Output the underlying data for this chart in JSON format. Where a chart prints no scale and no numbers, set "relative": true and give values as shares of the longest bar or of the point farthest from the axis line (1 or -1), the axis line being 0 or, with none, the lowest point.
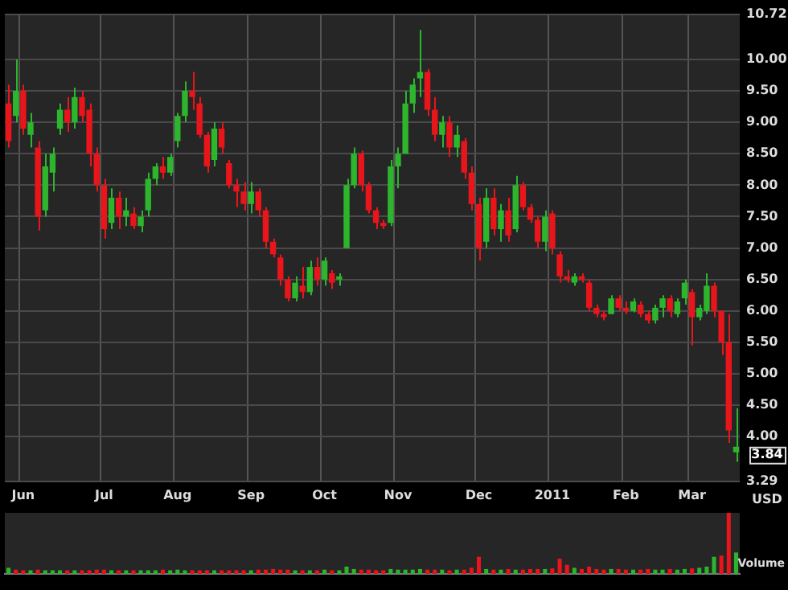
{
  "chart_data": [
    {
      "type": "candlestick",
      "ylabel": "USD",
      "grid": true,
      "categories": [
        null,
        null,
        "Jun",
        null,
        null,
        null,
        null,
        null,
        null,
        null,
        null,
        null,
        null,
        "Jul",
        null,
        null,
        null,
        null,
        null,
        null,
        null,
        null,
        null,
        "Aug",
        null,
        null,
        null,
        null,
        null,
        null,
        null,
        null,
        null,
        "Sep",
        null,
        null,
        null,
        null,
        null,
        null,
        null,
        null,
        null,
        "Oct",
        null,
        null,
        null,
        null,
        null,
        null,
        null,
        null,
        null,
        "Nov",
        null,
        null,
        null,
        null,
        null,
        null,
        null,
        null,
        null,
        null,
        "Dec",
        null,
        null,
        null,
        null,
        null,
        null,
        null,
        null,
        null,
        "2011",
        null,
        null,
        null,
        null,
        null,
        null,
        null,
        null,
        null,
        "Feb",
        null,
        null,
        null,
        null,
        null,
        null,
        null,
        null,
        "Mar",
        null,
        null,
        null,
        null,
        null,
        null
      ],
      "ohlc": [
        [
          9.3,
          9.6,
          8.6,
          8.7
        ],
        [
          9.1,
          10.0,
          9.0,
          9.5
        ],
        [
          9.5,
          9.6,
          8.8,
          8.9
        ],
        [
          8.8,
          9.15,
          8.6,
          9.0
        ],
        [
          8.6,
          8.7,
          7.28,
          7.5
        ],
        [
          7.6,
          8.5,
          7.5,
          8.3
        ],
        [
          8.2,
          8.6,
          7.9,
          8.5
        ],
        [
          8.9,
          9.3,
          8.8,
          9.2
        ],
        [
          9.2,
          9.4,
          8.85,
          9.0
        ],
        [
          9.0,
          9.55,
          8.9,
          9.4
        ],
        [
          9.4,
          9.5,
          9.0,
          9.1
        ],
        [
          9.2,
          9.3,
          8.3,
          8.5
        ],
        [
          8.5,
          8.6,
          7.9,
          8.0
        ],
        [
          8.0,
          8.1,
          7.15,
          7.3
        ],
        [
          7.4,
          7.95,
          7.3,
          7.8
        ],
        [
          7.8,
          7.9,
          7.3,
          7.5
        ],
        [
          7.5,
          7.8,
          7.35,
          7.6
        ],
        [
          7.55,
          7.65,
          7.3,
          7.35
        ],
        [
          7.35,
          7.6,
          7.25,
          7.5
        ],
        [
          7.6,
          8.2,
          7.5,
          8.1
        ],
        [
          8.1,
          8.35,
          8.0,
          8.3
        ],
        [
          8.3,
          8.45,
          8.1,
          8.2
        ],
        [
          8.2,
          8.5,
          8.15,
          8.45
        ],
        [
          8.7,
          9.15,
          8.6,
          9.1
        ],
        [
          9.1,
          9.65,
          9.0,
          9.5
        ],
        [
          9.5,
          9.8,
          9.2,
          9.4
        ],
        [
          9.3,
          9.4,
          8.75,
          8.8
        ],
        [
          8.8,
          8.85,
          8.2,
          8.3
        ],
        [
          8.4,
          9.0,
          8.3,
          8.9
        ],
        [
          8.9,
          9.0,
          8.5,
          8.6
        ],
        [
          8.35,
          8.4,
          7.95,
          8.0
        ],
        [
          8.0,
          8.1,
          7.65,
          7.9
        ],
        [
          7.9,
          8.05,
          7.6,
          7.7
        ],
        [
          7.7,
          8.05,
          7.55,
          7.9
        ],
        [
          7.9,
          7.95,
          7.5,
          7.6
        ],
        [
          7.6,
          7.65,
          7.0,
          7.1
        ],
        [
          7.1,
          7.15,
          6.85,
          6.9
        ],
        [
          6.85,
          6.9,
          6.4,
          6.5
        ],
        [
          6.5,
          6.55,
          6.15,
          6.2
        ],
        [
          6.2,
          6.55,
          6.15,
          6.45
        ],
        [
          6.4,
          6.7,
          6.2,
          6.3
        ],
        [
          6.3,
          6.8,
          6.25,
          6.7
        ],
        [
          6.7,
          6.85,
          6.4,
          6.5
        ],
        [
          6.5,
          6.85,
          6.4,
          6.8
        ],
        [
          6.6,
          6.65,
          6.35,
          6.45
        ],
        [
          6.5,
          6.6,
          6.4,
          6.55
        ],
        [
          7.0,
          8.1,
          7.0,
          8.0
        ],
        [
          8.0,
          8.6,
          7.95,
          8.5
        ],
        [
          8.5,
          8.55,
          7.9,
          8.0
        ],
        [
          8.0,
          8.05,
          7.55,
          7.6
        ],
        [
          7.6,
          7.65,
          7.3,
          7.4
        ],
        [
          7.4,
          7.45,
          7.3,
          7.35
        ],
        [
          7.4,
          8.4,
          7.35,
          8.3
        ],
        [
          8.3,
          8.6,
          7.95,
          8.5
        ],
        [
          8.5,
          9.5,
          8.5,
          9.3
        ],
        [
          9.3,
          9.7,
          9.15,
          9.6
        ],
        [
          9.7,
          10.47,
          9.4,
          9.8
        ],
        [
          9.8,
          9.85,
          9.1,
          9.2
        ],
        [
          9.2,
          9.4,
          8.7,
          8.8
        ],
        [
          8.8,
          9.1,
          8.6,
          9.0
        ],
        [
          9.0,
          9.1,
          8.45,
          8.6
        ],
        [
          8.6,
          8.95,
          8.45,
          8.8
        ],
        [
          8.7,
          8.75,
          8.1,
          8.2
        ],
        [
          8.2,
          8.3,
          7.6,
          7.7
        ],
        [
          7.7,
          7.8,
          6.8,
          7.0
        ],
        [
          7.1,
          7.95,
          7.0,
          7.8
        ],
        [
          7.8,
          7.95,
          7.2,
          7.3
        ],
        [
          7.3,
          7.7,
          7.1,
          7.6
        ],
        [
          7.6,
          7.8,
          7.1,
          7.2
        ],
        [
          7.3,
          8.15,
          7.25,
          8.0
        ],
        [
          8.0,
          8.05,
          7.6,
          7.65
        ],
        [
          7.65,
          7.7,
          7.4,
          7.45
        ],
        [
          7.45,
          7.5,
          7.0,
          7.1
        ],
        [
          7.1,
          7.6,
          6.95,
          7.5
        ],
        [
          7.55,
          7.6,
          6.9,
          7.0
        ],
        [
          6.9,
          6.95,
          6.45,
          6.55
        ],
        [
          6.55,
          6.65,
          6.45,
          6.5
        ],
        [
          6.45,
          6.6,
          6.4,
          6.55
        ],
        [
          6.55,
          6.6,
          6.45,
          6.5
        ],
        [
          6.45,
          6.5,
          6.0,
          6.05
        ],
        [
          6.05,
          6.1,
          5.9,
          5.95
        ],
        [
          5.95,
          6.0,
          5.85,
          5.9
        ],
        [
          5.95,
          6.25,
          5.95,
          6.2
        ],
        [
          6.2,
          6.25,
          6.0,
          6.05
        ],
        [
          6.05,
          6.15,
          5.95,
          6.0
        ],
        [
          6.0,
          6.2,
          5.98,
          6.15
        ],
        [
          6.1,
          6.15,
          5.9,
          5.95
        ],
        [
          5.95,
          6.0,
          5.8,
          5.85
        ],
        [
          5.85,
          6.1,
          5.8,
          6.05
        ],
        [
          6.05,
          6.25,
          5.9,
          6.2
        ],
        [
          6.2,
          6.25,
          5.9,
          6.0
        ],
        [
          5.95,
          6.2,
          5.9,
          6.15
        ],
        [
          6.2,
          6.5,
          6.1,
          6.45
        ],
        [
          6.3,
          6.35,
          5.45,
          5.9
        ],
        [
          5.9,
          6.1,
          5.85,
          6.05
        ],
        [
          6.0,
          6.6,
          5.95,
          6.4
        ],
        [
          6.4,
          6.45,
          5.9,
          6.0
        ],
        [
          6.0,
          6.0,
          5.3,
          5.5
        ],
        [
          5.5,
          5.95,
          3.9,
          4.1
        ],
        [
          3.75,
          4.45,
          3.6,
          3.84
        ]
      ],
      "colors": [
        "#e8151b",
        "#2db52d",
        "#e8151b",
        "#2db52d",
        "#e8151b",
        "#2db52d",
        "#2db52d",
        "#2db52d",
        "#e8151b",
        "#2db52d",
        "#e8151b",
        "#e8151b",
        "#e8151b",
        "#e8151b",
        "#2db52d",
        "#e8151b",
        "#2db52d",
        "#e8151b",
        "#2db52d",
        "#2db52d",
        "#2db52d",
        "#e8151b",
        "#2db52d",
        "#2db52d",
        "#2db52d",
        "#e8151b",
        "#e8151b",
        "#e8151b",
        "#2db52d",
        "#e8151b",
        "#e8151b",
        "#e8151b",
        "#e8151b",
        "#2db52d",
        "#e8151b",
        "#e8151b",
        "#e8151b",
        "#e8151b",
        "#e8151b",
        "#2db52d",
        "#e8151b",
        "#2db52d",
        "#e8151b",
        "#2db52d",
        "#e8151b",
        "#2db52d",
        "#2db52d",
        "#2db52d",
        "#e8151b",
        "#e8151b",
        "#e8151b",
        "#e8151b",
        "#2db52d",
        "#2db52d",
        "#2db52d",
        "#2db52d",
        "#2db52d",
        "#e8151b",
        "#e8151b",
        "#2db52d",
        "#e8151b",
        "#2db52d",
        "#e8151b",
        "#e8151b",
        "#e8151b",
        "#2db52d",
        "#e8151b",
        "#2db52d",
        "#e8151b",
        "#2db52d",
        "#e8151b",
        "#e8151b",
        "#e8151b",
        "#2db52d",
        "#e8151b",
        "#e8151b",
        "#e8151b",
        "#2db52d",
        "#e8151b",
        "#e8151b",
        "#e8151b",
        "#e8151b",
        "#2db52d",
        "#e8151b",
        "#e8151b",
        "#2db52d",
        "#e8151b",
        "#e8151b",
        "#2db52d",
        "#2db52d",
        "#e8151b",
        "#2db52d",
        "#2db52d",
        "#e8151b",
        "#2db52d",
        "#2db52d",
        "#e8151b",
        "#e8151b",
        "#e8151b",
        "#2db52d"
      ],
      "ylim": [
        3.29,
        10.72
      ],
      "yticks": [
        3.29,
        {
          "value": 4,
          "label": "4.00"
        },
        {
          "value": 4.5,
          "label": "4.50"
        },
        {
          "value": 5,
          "label": "5.00"
        },
        {
          "value": 5.5,
          "label": "5.50"
        },
        {
          "value": 6,
          "label": "6.00"
        },
        {
          "value": 6.5,
          "label": "6.50"
        },
        {
          "value": 7,
          "label": "7.00"
        },
        {
          "value": 7.5,
          "label": "7.50"
        },
        {
          "value": 8,
          "label": "8.00"
        },
        {
          "value": 8.5,
          "label": "8.50"
        },
        {
          "value": 9,
          "label": "9.00"
        },
        {
          "value": 9.5,
          "label": "9.50"
        },
        {
          "value": 10,
          "label": "10.00"
        },
        10.72
      ],
      "annotations": [
        "3.84"
      ]
    },
    {
      "type": "bar",
      "relative": true,
      "ylabel": "Volume",
      "categories": [
        null,
        null,
        null,
        null,
        null,
        null,
        null,
        null,
        null,
        null,
        null,
        null,
        null,
        null,
        null,
        null,
        null,
        null,
        null,
        null,
        null,
        null,
        null,
        null,
        null,
        null,
        null,
        null,
        null,
        null,
        null,
        null,
        null,
        null,
        null,
        null,
        null,
        null,
        null,
        null,
        null,
        null,
        null,
        null,
        null,
        null,
        null,
        null,
        null,
        null,
        null,
        null,
        null,
        null,
        null,
        null,
        null,
        null,
        null,
        null,
        null,
        null,
        null,
        null,
        null,
        null,
        null,
        null,
        null,
        null,
        null,
        null,
        null,
        null,
        null,
        null,
        null,
        null,
        null,
        null,
        null,
        null,
        null,
        null,
        null,
        null,
        null,
        null,
        null,
        null,
        null,
        null,
        null,
        null,
        null,
        null,
        null,
        null,
        null,
        null
      ],
      "values": [
        0.1,
        0.07,
        0.06,
        0.06,
        0.07,
        0.06,
        0.06,
        0.06,
        0.06,
        0.06,
        0.06,
        0.06,
        0.07,
        0.07,
        0.06,
        0.06,
        0.06,
        0.06,
        0.06,
        0.06,
        0.06,
        0.07,
        0.06,
        0.07,
        0.06,
        0.06,
        0.06,
        0.06,
        0.06,
        0.06,
        0.06,
        0.06,
        0.06,
        0.06,
        0.07,
        0.07,
        0.08,
        0.07,
        0.07,
        0.06,
        0.06,
        0.06,
        0.06,
        0.07,
        0.06,
        0.06,
        0.12,
        0.08,
        0.07,
        0.07,
        0.06,
        0.06,
        0.08,
        0.07,
        0.07,
        0.07,
        0.08,
        0.07,
        0.07,
        0.07,
        0.06,
        0.07,
        0.07,
        0.1,
        0.28,
        0.08,
        0.07,
        0.07,
        0.08,
        0.07,
        0.07,
        0.08,
        0.08,
        0.08,
        0.09,
        0.25,
        0.15,
        0.1,
        0.08,
        0.12,
        0.08,
        0.07,
        0.08,
        0.08,
        0.07,
        0.07,
        0.07,
        0.08,
        0.07,
        0.07,
        0.08,
        0.07,
        0.08,
        0.09,
        0.1,
        0.12,
        0.28,
        0.3,
        1.0,
        0.35
      ],
      "colors": [
        "#2db52d",
        "#e8151b",
        "#e8151b",
        "#2db52d",
        "#e8151b",
        "#2db52d",
        "#2db52d",
        "#2db52d",
        "#e8151b",
        "#2db52d",
        "#e8151b",
        "#e8151b",
        "#e8151b",
        "#e8151b",
        "#2db52d",
        "#e8151b",
        "#2db52d",
        "#e8151b",
        "#2db52d",
        "#2db52d",
        "#2db52d",
        "#e8151b",
        "#2db52d",
        "#2db52d",
        "#2db52d",
        "#e8151b",
        "#e8151b",
        "#e8151b",
        "#2db52d",
        "#e8151b",
        "#e8151b",
        "#e8151b",
        "#e8151b",
        "#2db52d",
        "#e8151b",
        "#e8151b",
        "#e8151b",
        "#e8151b",
        "#e8151b",
        "#2db52d",
        "#e8151b",
        "#2db52d",
        "#e8151b",
        "#2db52d",
        "#e8151b",
        "#2db52d",
        "#2db52d",
        "#2db52d",
        "#e8151b",
        "#e8151b",
        "#e8151b",
        "#e8151b",
        "#2db52d",
        "#2db52d",
        "#2db52d",
        "#2db52d",
        "#2db52d",
        "#e8151b",
        "#e8151b",
        "#2db52d",
        "#e8151b",
        "#2db52d",
        "#e8151b",
        "#e8151b",
        "#e8151b",
        "#2db52d",
        "#e8151b",
        "#2db52d",
        "#e8151b",
        "#2db52d",
        "#e8151b",
        "#e8151b",
        "#e8151b",
        "#2db52d",
        "#e8151b",
        "#e8151b",
        "#e8151b",
        "#2db52d",
        "#e8151b",
        "#e8151b",
        "#e8151b",
        "#e8151b",
        "#2db52d",
        "#e8151b",
        "#e8151b",
        "#2db52d",
        "#e8151b",
        "#e8151b",
        "#2db52d",
        "#2db52d",
        "#e8151b",
        "#2db52d",
        "#2db52d",
        "#e8151b",
        "#2db52d",
        "#2db52d",
        "#2db52d",
        "#e8151b",
        "#e8151b",
        "#2db52d"
      ]
    }
  ]
}
